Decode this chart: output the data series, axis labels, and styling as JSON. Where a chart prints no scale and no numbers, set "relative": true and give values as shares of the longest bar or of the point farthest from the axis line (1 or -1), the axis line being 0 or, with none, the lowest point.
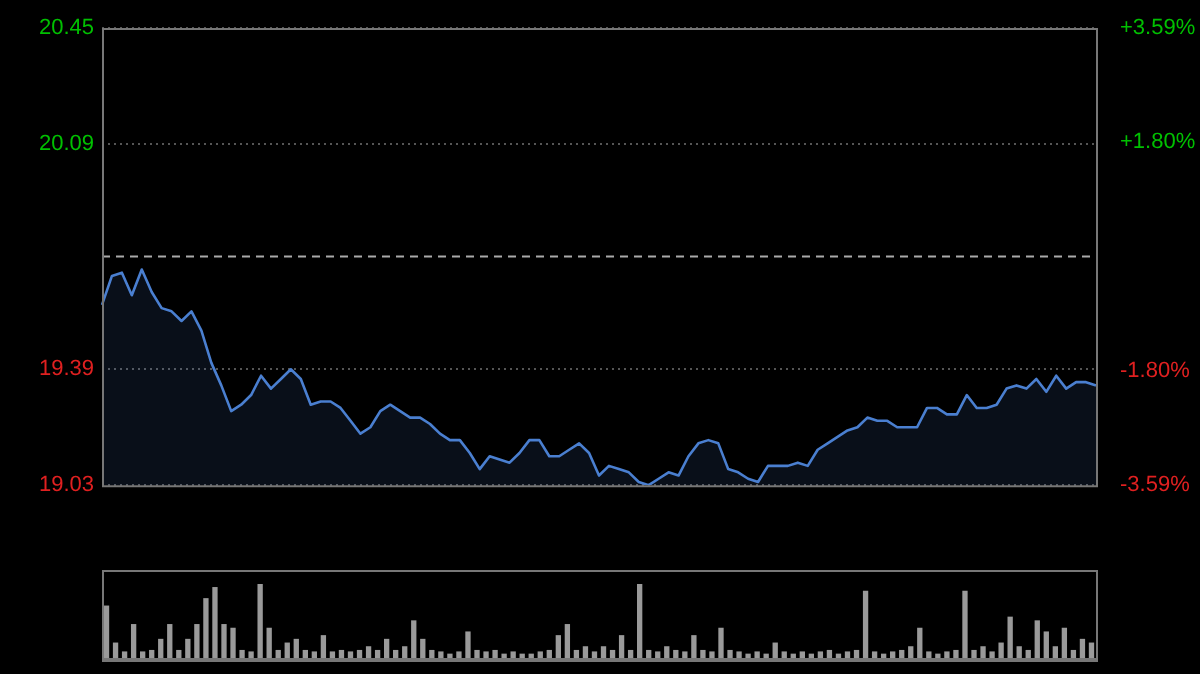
{
  "chart_data": [
    {
      "type": "area",
      "categories": [
        null,
        null,
        null,
        null,
        null,
        null,
        null,
        null,
        null,
        null,
        null,
        null,
        null,
        null,
        null,
        null,
        null,
        null,
        null,
        null,
        null,
        null,
        null,
        null,
        null,
        null,
        null,
        null,
        null,
        null,
        null,
        null,
        null,
        null,
        null,
        null,
        null,
        null,
        null,
        null,
        null,
        null,
        null,
        null,
        null,
        null,
        null,
        null,
        null,
        null,
        null,
        null,
        null,
        null,
        null,
        null,
        null,
        null,
        null,
        null,
        null,
        null,
        null,
        null,
        null,
        null,
        null,
        null,
        null,
        null,
        null,
        null,
        null,
        null,
        null,
        null,
        null,
        null,
        null,
        null,
        null,
        null,
        null,
        null,
        null,
        null,
        null,
        null,
        null,
        null,
        null,
        null,
        null,
        null,
        null,
        null,
        null,
        null,
        null,
        null,
        null
      ],
      "ylim": [
        19.03,
        20.45
      ],
      "yticks": [
        19.03,
        19.39,
        20.09,
        20.45
      ],
      "y2lim": [
        -3.59,
        3.59
      ],
      "y2ticks": [
        {
          "value": -3.59,
          "label": "-3.59%"
        },
        {
          "value": -1.8,
          "label": "-1.80%"
        },
        {
          "value": 1.8,
          "label": "+1.80%"
        },
        {
          "value": 3.59,
          "label": "+3.59%"
        }
      ],
      "ref_lines": [
        {
          "axis": "y",
          "value": 19.74,
          "line_style": "dashed"
        }
      ],
      "grid": "y",
      "series": [
        {
          "color": "#4a7fd0",
          "values": [
            19.59,
            19.68,
            19.69,
            19.62,
            19.7,
            19.63,
            19.58,
            19.57,
            19.54,
            19.57,
            19.51,
            19.41,
            19.34,
            19.26,
            19.28,
            19.31,
            19.37,
            19.33,
            19.36,
            19.39,
            19.36,
            19.28,
            19.29,
            19.29,
            19.27,
            19.23,
            19.19,
            19.21,
            19.26,
            19.28,
            19.26,
            19.24,
            19.24,
            19.22,
            19.19,
            19.17,
            19.17,
            19.13,
            19.08,
            19.12,
            19.11,
            19.1,
            19.13,
            19.17,
            19.17,
            19.12,
            19.12,
            19.14,
            19.16,
            19.13,
            19.06,
            19.09,
            19.08,
            19.07,
            19.04,
            19.03,
            19.05,
            19.07,
            19.06,
            19.12,
            19.16,
            19.17,
            19.16,
            19.08,
            19.07,
            19.05,
            19.04,
            19.09,
            19.09,
            19.09,
            19.1,
            19.09,
            19.14,
            19.16,
            19.18,
            19.2,
            19.21,
            19.24,
            19.23,
            19.23,
            19.21,
            19.21,
            19.21,
            19.27,
            19.27,
            19.25,
            19.25,
            19.31,
            19.27,
            19.27,
            19.28,
            19.33,
            19.34,
            19.33,
            19.36,
            19.32,
            19.37,
            19.33,
            19.35,
            19.35,
            19.34
          ]
        }
      ]
    },
    {
      "type": "bar",
      "relative": true,
      "color": "#9a9a9a",
      "categories": [
        null,
        null,
        null,
        null,
        null,
        null,
        null,
        null,
        null,
        null,
        null,
        null,
        null,
        null,
        null,
        null,
        null,
        null,
        null,
        null,
        null,
        null,
        null,
        null,
        null,
        null,
        null,
        null,
        null,
        null,
        null,
        null,
        null,
        null,
        null,
        null,
        null,
        null,
        null,
        null,
        null,
        null,
        null,
        null,
        null,
        null,
        null,
        null,
        null,
        null,
        null,
        null,
        null,
        null,
        null,
        null,
        null,
        null,
        null,
        null,
        null,
        null,
        null,
        null,
        null,
        null,
        null,
        null,
        null,
        null,
        null,
        null,
        null,
        null,
        null,
        null,
        null,
        null,
        null,
        null,
        null,
        null,
        null,
        null,
        null,
        null,
        null,
        null,
        null,
        null,
        null,
        null,
        null,
        null,
        null,
        null,
        null,
        null,
        null,
        null,
        null,
        null,
        null,
        null,
        null,
        null,
        null,
        null,
        null,
        null
      ],
      "values": [
        0.7,
        0.2,
        0.08,
        0.45,
        0.08,
        0.1,
        0.25,
        0.45,
        0.1,
        0.25,
        0.45,
        0.8,
        0.95,
        0.45,
        0.4,
        0.1,
        0.08,
        1,
        0.4,
        0.1,
        0.2,
        0.25,
        0.1,
        0.08,
        0.3,
        0.08,
        0.1,
        0.08,
        0.1,
        0.15,
        0.1,
        0.25,
        0.1,
        0.15,
        0.5,
        0.25,
        0.1,
        0.08,
        0.05,
        0.08,
        0.35,
        0.1,
        0.08,
        0.1,
        0.05,
        0.08,
        0.05,
        0.05,
        0.08,
        0.1,
        0.3,
        0.45,
        0.1,
        0.15,
        0.08,
        0.15,
        0.1,
        0.3,
        0.1,
        1,
        0.1,
        0.08,
        0.15,
        0.1,
        0.08,
        0.3,
        0.1,
        0.08,
        0.4,
        0.1,
        0.08,
        0.05,
        0.08,
        0.05,
        0.2,
        0.08,
        0.05,
        0.08,
        0.05,
        0.08,
        0.1,
        0.05,
        0.08,
        0.1,
        0.9,
        0.08,
        0.05,
        0.08,
        0.1,
        0.15,
        0.4,
        0.08,
        0.05,
        0.08,
        0.1,
        0.9,
        0.1,
        0.15,
        0.08,
        0.2,
        0.55,
        0.15,
        0.1,
        0.5,
        0.35,
        0.15,
        0.4,
        0.1,
        0.25,
        0.2
      ]
    }
  ]
}
